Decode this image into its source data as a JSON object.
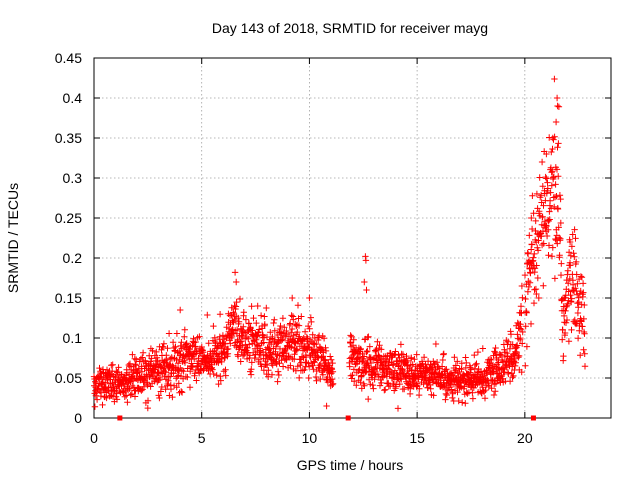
{
  "chart_data": {
    "type": "scatter",
    "title": "Day 143 of 2018, SRMTID for receiver mayg",
    "xlabel": "GPS time / hours",
    "ylabel": "SRMTID / TECUs",
    "xlim": [
      0,
      24
    ],
    "ylim": [
      0,
      0.45
    ],
    "xticks": [
      0,
      5,
      10,
      15,
      20
    ],
    "yticks": [
      0,
      0.05,
      0.1,
      0.15,
      0.2,
      0.25,
      0.3,
      0.35,
      0.4,
      0.45
    ],
    "xtick_labels": [
      "0",
      "5",
      "10",
      "15",
      "20"
    ],
    "ytick_labels": [
      "0",
      "0.05",
      "0.1",
      "0.15",
      "0.2",
      "0.25",
      "0.3",
      "0.35",
      "0.4",
      "0.45"
    ],
    "grid": true,
    "marker": "+",
    "color": "#ff0000",
    "series": [
      {
        "name": "SRMTID",
        "trend": [
          {
            "t": 0.0,
            "m": 0.042,
            "s": 0.01
          },
          {
            "t": 1.0,
            "m": 0.04,
            "s": 0.01
          },
          {
            "t": 2.0,
            "m": 0.05,
            "s": 0.012
          },
          {
            "t": 3.0,
            "m": 0.062,
            "s": 0.014
          },
          {
            "t": 4.0,
            "m": 0.072,
            "s": 0.016
          },
          {
            "t": 5.0,
            "m": 0.075,
            "s": 0.016
          },
          {
            "t": 6.0,
            "m": 0.082,
            "s": 0.017
          },
          {
            "t": 6.5,
            "m": 0.115,
            "s": 0.02
          },
          {
            "t": 7.0,
            "m": 0.095,
            "s": 0.018
          },
          {
            "t": 8.0,
            "m": 0.088,
            "s": 0.018
          },
          {
            "t": 9.0,
            "m": 0.092,
            "s": 0.02
          },
          {
            "t": 10.0,
            "m": 0.085,
            "s": 0.018
          },
          {
            "t": 11.0,
            "m": 0.058,
            "s": 0.013
          },
          {
            "t": 12.0,
            "m": 0.07,
            "s": 0.015
          },
          {
            "t": 13.0,
            "m": 0.065,
            "s": 0.014
          },
          {
            "t": 14.0,
            "m": 0.06,
            "s": 0.013
          },
          {
            "t": 15.0,
            "m": 0.055,
            "s": 0.012
          },
          {
            "t": 16.0,
            "m": 0.052,
            "s": 0.012
          },
          {
            "t": 17.0,
            "m": 0.045,
            "s": 0.01
          },
          {
            "t": 18.0,
            "m": 0.048,
            "s": 0.011
          },
          {
            "t": 19.0,
            "m": 0.065,
            "s": 0.014
          },
          {
            "t": 19.7,
            "m": 0.09,
            "s": 0.02
          },
          {
            "t": 20.0,
            "m": 0.14,
            "s": 0.03
          },
          {
            "t": 20.5,
            "m": 0.2,
            "s": 0.035
          },
          {
            "t": 21.0,
            "m": 0.26,
            "s": 0.04
          },
          {
            "t": 21.5,
            "m": 0.28,
            "s": 0.05
          },
          {
            "t": 21.8,
            "m": 0.12,
            "s": 0.03
          },
          {
            "t": 22.2,
            "m": 0.18,
            "s": 0.035
          },
          {
            "t": 22.8,
            "m": 0.11,
            "s": 0.025
          }
        ],
        "spikes": [
          {
            "t": 4.0,
            "v": 0.135
          },
          {
            "t": 6.55,
            "v": 0.182
          },
          {
            "t": 6.6,
            "v": 0.17
          },
          {
            "t": 7.6,
            "v": 0.14
          },
          {
            "t": 9.2,
            "v": 0.15
          },
          {
            "t": 10.0,
            "v": 0.15
          },
          {
            "t": 10.8,
            "v": 0.015
          },
          {
            "t": 12.6,
            "v": 0.202
          },
          {
            "t": 12.62,
            "v": 0.197
          },
          {
            "t": 12.55,
            "v": 0.17
          },
          {
            "t": 12.65,
            "v": 0.16
          },
          {
            "t": 21.5,
            "v": 0.4
          },
          {
            "t": 21.52,
            "v": 0.39
          },
          {
            "t": 21.45,
            "v": 0.37
          },
          {
            "t": 21.3,
            "v": 0.35
          },
          {
            "t": 21.0,
            "v": 0.33
          },
          {
            "t": 20.8,
            "v": 0.32
          },
          {
            "t": 20.3,
            "v": 0.25
          },
          {
            "t": 22.1,
            "v": 0.22
          }
        ],
        "gaps": [
          [
            11.1,
            11.85
          ],
          [
            19.9,
            20.0
          ]
        ],
        "zero_points": [
          1.2,
          11.8,
          20.4
        ]
      }
    ]
  }
}
